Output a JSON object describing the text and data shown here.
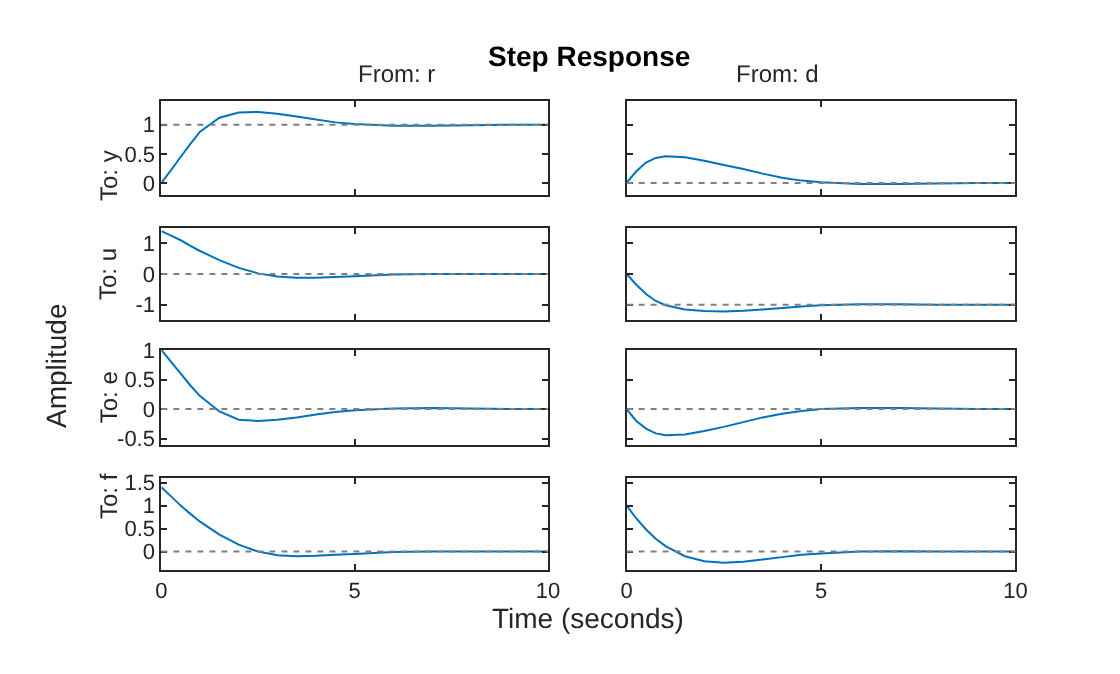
{
  "chart_data": [
    {
      "type": "line",
      "title": "Step Response",
      "subtitle": "From: r",
      "ylabel": "To: y",
      "annotations": [
        "Amplitude"
      ],
      "x": [
        0,
        0.25,
        0.5,
        0.75,
        1,
        1.5,
        2,
        2.5,
        3,
        3.5,
        4,
        4.5,
        5,
        6,
        7,
        8,
        9,
        10
      ],
      "series": [
        {
          "color": "#0072bd",
          "values": [
            0,
            0.22,
            0.45,
            0.67,
            0.88,
            1.12,
            1.21,
            1.22,
            1.19,
            1.14,
            1.09,
            1.04,
            1.01,
            0.98,
            0.98,
            0.99,
            1.0,
            1.0
          ]
        }
      ],
      "xlim": [
        0,
        10
      ],
      "xticks": [
        0,
        5,
        10
      ],
      "ylim": [
        -0.2,
        1.4
      ],
      "yticks": [
        0,
        0.5,
        1
      ],
      "tick_labels": "y",
      "ref_lines": [
        {
          "axis": "y",
          "value": 1,
          "color": "#808080",
          "line_style": "dotted"
        }
      ]
    },
    {
      "type": "line",
      "subtitle": "From: d",
      "x": [
        0,
        0.25,
        0.5,
        0.75,
        1,
        1.5,
        2,
        2.5,
        3,
        3.5,
        4,
        4.5,
        5,
        6,
        7,
        8,
        9,
        10
      ],
      "series": [
        {
          "color": "#0072bd",
          "values": [
            0,
            0.2,
            0.35,
            0.43,
            0.46,
            0.44,
            0.38,
            0.31,
            0.24,
            0.16,
            0.09,
            0.04,
            0.01,
            -0.02,
            -0.02,
            -0.01,
            0,
            0
          ]
        }
      ],
      "xlim": [
        0,
        10
      ],
      "xticks": [
        0,
        5,
        10
      ],
      "ylim": [
        -0.2,
        1.4
      ],
      "yticks": [
        0,
        0.5,
        1
      ],
      "tick_labels": false,
      "ref_lines": [
        {
          "axis": "y",
          "value": 0,
          "color": "#808080",
          "line_style": "dotted"
        }
      ]
    },
    {
      "type": "line",
      "ylabel": "To: u",
      "x": [
        0,
        0.25,
        0.5,
        0.75,
        1,
        1.5,
        2,
        2.5,
        3,
        3.5,
        4,
        4.5,
        5,
        6,
        7,
        8,
        9,
        10
      ],
      "series": [
        {
          "color": "#0072bd",
          "values": [
            1.4,
            1.25,
            1.1,
            0.92,
            0.75,
            0.45,
            0.2,
            0.02,
            -0.08,
            -0.12,
            -0.12,
            -0.1,
            -0.07,
            -0.02,
            0,
            0,
            0,
            0
          ]
        }
      ],
      "xlim": [
        0,
        10
      ],
      "xticks": [
        0,
        5,
        10
      ],
      "ylim": [
        -1.5,
        1.5
      ],
      "yticks": [
        -1,
        0,
        1
      ],
      "tick_labels": "y",
      "ref_lines": [
        {
          "axis": "y",
          "value": 0,
          "color": "#808080",
          "line_style": "dotted"
        }
      ]
    },
    {
      "type": "line",
      "x": [
        0,
        0.25,
        0.5,
        0.75,
        1,
        1.5,
        2,
        2.5,
        3,
        3.5,
        4,
        4.5,
        5,
        6,
        7,
        8,
        9,
        10
      ],
      "series": [
        {
          "color": "#0072bd",
          "values": [
            0,
            -0.35,
            -0.65,
            -0.88,
            -1.02,
            -1.16,
            -1.21,
            -1.22,
            -1.2,
            -1.16,
            -1.11,
            -1.06,
            -1.02,
            -0.99,
            -0.99,
            -1.0,
            -1.0,
            -1.0
          ]
        }
      ],
      "xlim": [
        0,
        10
      ],
      "xticks": [
        0,
        5,
        10
      ],
      "ylim": [
        -1.5,
        1.5
      ],
      "yticks": [
        -1,
        0,
        1
      ],
      "tick_labels": false,
      "ref_lines": [
        {
          "axis": "y",
          "value": -1,
          "color": "#808080",
          "line_style": "dotted"
        }
      ]
    },
    {
      "type": "line",
      "ylabel": "To: e",
      "x": [
        0,
        0.25,
        0.5,
        0.75,
        1,
        1.5,
        2,
        2.5,
        3,
        3.5,
        4,
        4.5,
        5,
        6,
        7,
        8,
        9,
        10
      ],
      "series": [
        {
          "color": "#0072bd",
          "values": [
            1,
            0.8,
            0.6,
            0.4,
            0.22,
            -0.04,
            -0.18,
            -0.2,
            -0.18,
            -0.14,
            -0.09,
            -0.05,
            -0.02,
            0.01,
            0.02,
            0.01,
            0,
            0
          ]
        }
      ],
      "xlim": [
        0,
        10
      ],
      "xticks": [
        0,
        5,
        10
      ],
      "ylim": [
        -0.6,
        1
      ],
      "yticks": [
        -0.5,
        0,
        0.5,
        1
      ],
      "tick_labels": "y",
      "ref_lines": [
        {
          "axis": "y",
          "value": 0,
          "color": "#808080",
          "line_style": "dotted"
        }
      ]
    },
    {
      "type": "line",
      "x": [
        0,
        0.25,
        0.5,
        0.75,
        1,
        1.5,
        2,
        2.5,
        3,
        3.5,
        4,
        4.5,
        5,
        6,
        7,
        8,
        9,
        10
      ],
      "series": [
        {
          "color": "#0072bd",
          "values": [
            0,
            -0.2,
            -0.33,
            -0.41,
            -0.44,
            -0.43,
            -0.37,
            -0.3,
            -0.22,
            -0.14,
            -0.08,
            -0.03,
            0,
            0.02,
            0.02,
            0.01,
            0,
            0
          ]
        }
      ],
      "xlim": [
        0,
        10
      ],
      "xticks": [
        0,
        5,
        10
      ],
      "ylim": [
        -0.6,
        1
      ],
      "yticks": [
        -0.5,
        0,
        0.5,
        1
      ],
      "tick_labels": false,
      "ref_lines": [
        {
          "axis": "y",
          "value": 0,
          "color": "#808080",
          "line_style": "dotted"
        }
      ]
    },
    {
      "type": "line",
      "ylabel": "To: f",
      "xlabel": "Time (seconds)",
      "x": [
        0,
        0.25,
        0.5,
        0.75,
        1,
        1.5,
        2,
        2.5,
        3,
        3.5,
        4,
        4.5,
        5,
        6,
        7,
        8,
        9,
        10
      ],
      "series": [
        {
          "color": "#0072bd",
          "values": [
            1.4,
            1.2,
            1.0,
            0.82,
            0.65,
            0.37,
            0.15,
            0.0,
            -0.08,
            -0.1,
            -0.09,
            -0.07,
            -0.05,
            -0.01,
            0,
            0,
            0,
            0
          ]
        }
      ],
      "xlim": [
        0,
        10
      ],
      "xticks": [
        0,
        5,
        10
      ],
      "ylim": [
        -0.4,
        1.6
      ],
      "yticks": [
        0,
        0.5,
        1,
        1.5
      ],
      "ref_lines": [
        {
          "axis": "y",
          "value": 0,
          "color": "#808080",
          "line_style": "dotted"
        }
      ]
    },
    {
      "type": "line",
      "x": [
        0,
        0.25,
        0.5,
        0.75,
        1,
        1.5,
        2,
        2.5,
        3,
        3.5,
        4,
        4.5,
        5,
        6,
        7,
        8,
        9,
        10
      ],
      "series": [
        {
          "color": "#0072bd",
          "values": [
            1,
            0.72,
            0.48,
            0.28,
            0.12,
            -0.1,
            -0.21,
            -0.24,
            -0.22,
            -0.17,
            -0.12,
            -0.07,
            -0.04,
            0,
            0.01,
            0,
            0,
            0
          ]
        }
      ],
      "xlim": [
        0,
        10
      ],
      "xticks": [
        0,
        5,
        10
      ],
      "ylim": [
        -0.4,
        1.6
      ],
      "yticks": [
        0,
        0.5,
        1,
        1.5
      ],
      "tick_labels": "x",
      "ref_lines": [
        {
          "axis": "y",
          "value": 0,
          "color": "#808080",
          "line_style": "dotted"
        }
      ]
    }
  ]
}
